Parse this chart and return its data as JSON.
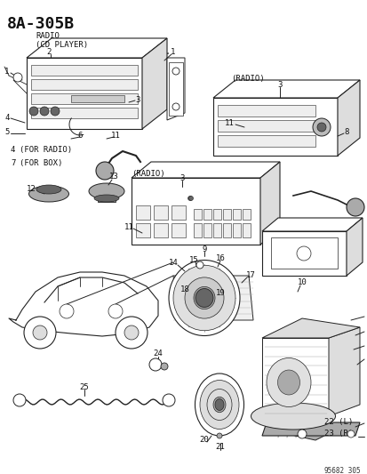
{
  "title": "8A-305B",
  "subtitle1": "RADIO",
  "subtitle2": "(CD PLAYER)",
  "bg_color": "#ffffff",
  "fig_width": 4.14,
  "fig_height": 5.33,
  "dpi": 100,
  "diagram_code": "95682_305",
  "line_color": "#222222",
  "gray_light": "#dddddd",
  "gray_mid": "#aaaaaa",
  "gray_dark": "#666666"
}
